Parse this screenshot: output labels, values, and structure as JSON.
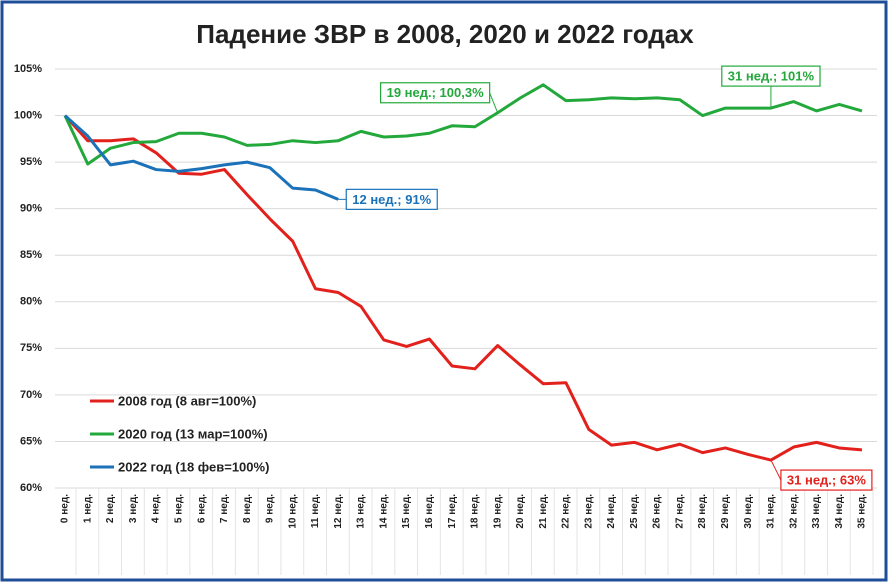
{
  "chart_data": {
    "type": "line",
    "title": "Падение ЗВР в 2008, 2020 и 2022 годах",
    "categories": [
      "0 нед.",
      "1 нед.",
      "2 нед.",
      "3 нед.",
      "4 нед.",
      "5 нед.",
      "6 нед.",
      "7 нед.",
      "8 нед.",
      "9 нед.",
      "10 нед.",
      "11 нед.",
      "12 нед.",
      "13 нед.",
      "14 нед.",
      "15 нед.",
      "16 нед.",
      "17 нед.",
      "18 нед.",
      "19 нед.",
      "20 нед.",
      "21 нед.",
      "22 нед.",
      "23 нед.",
      "24 нед.",
      "25 нед.",
      "26 нед.",
      "27 нед.",
      "28 нед.",
      "29 нед.",
      "30 нед.",
      "31 нед.",
      "32 нед.",
      "33 нед.",
      "34 нед.",
      "35 нед."
    ],
    "series": [
      {
        "name": "2008 год (8 авг=100%)",
        "color": "#e3211c",
        "values": [
          100,
          97.3,
          97.3,
          97.5,
          96,
          93.8,
          93.7,
          94.2,
          91.5,
          88.9,
          86.5,
          81.4,
          81,
          79.5,
          75.9,
          75.2,
          76,
          73.1,
          72.8,
          75.3,
          73.2,
          71.2,
          71.3,
          66.3,
          64.6,
          64.9,
          64.1,
          64.7,
          63.8,
          64.3,
          63.6,
          63,
          64.4,
          64.9,
          64.3,
          64.1
        ],
        "value_labels": [
          null,
          null,
          null,
          null,
          null,
          null,
          null,
          null,
          null,
          null,
          null,
          null,
          null,
          null,
          null,
          null,
          null,
          null,
          null,
          null,
          null,
          null,
          null,
          null,
          null,
          null,
          null,
          null,
          null,
          null,
          null,
          "31 нед.; 63%",
          null,
          null,
          null,
          null
        ]
      },
      {
        "name": "2020 год (13 мар=100%)",
        "color": "#23a83b",
        "values": [
          100,
          94.8,
          96.5,
          97.1,
          97.2,
          98.1,
          98.1,
          97.7,
          96.8,
          96.9,
          97.3,
          97.1,
          97.3,
          98.3,
          97.7,
          97.8,
          98.1,
          98.9,
          98.8,
          100.3,
          101.9,
          103.3,
          101.6,
          101.7,
          101.9,
          101.8,
          101.9,
          101.7,
          100,
          100.8,
          100.8,
          100.8,
          101.5,
          100.5,
          101.2,
          100.5
        ],
        "value_labels": [
          null,
          null,
          null,
          null,
          null,
          null,
          null,
          null,
          null,
          null,
          null,
          null,
          null,
          null,
          null,
          null,
          null,
          null,
          null,
          "19 нед.; 100,3%",
          null,
          null,
          null,
          null,
          null,
          null,
          null,
          null,
          null,
          null,
          null,
          "31 нед.; 101%",
          null,
          null,
          null,
          null
        ]
      },
      {
        "name": "2022 год (18 фев=100%)",
        "color": "#1b72b8",
        "values": [
          100,
          97.8,
          94.7,
          95.1,
          94.2,
          94,
          94.3,
          94.7,
          95,
          94.4,
          92.2,
          92,
          91,
          null,
          null,
          null,
          null,
          null,
          null,
          null,
          null,
          null,
          null,
          null,
          null,
          null,
          null,
          null,
          null,
          null,
          null,
          null,
          null,
          null,
          null,
          null
        ],
        "value_labels": [
          null,
          null,
          null,
          null,
          null,
          null,
          null,
          null,
          null,
          null,
          null,
          null,
          "12 нед.; 91%",
          null,
          null,
          null,
          null,
          null,
          null,
          null,
          null,
          null,
          null,
          null,
          null,
          null,
          null,
          null,
          null,
          null,
          null,
          null,
          null,
          null,
          null,
          null
        ]
      }
    ],
    "ylim": [
      60,
      105
    ],
    "yticks": [
      {
        "value": 60,
        "label": "60%"
      },
      {
        "value": 65,
        "label": "65%"
      },
      {
        "value": 70,
        "label": "70%"
      },
      {
        "value": 75,
        "label": "75%"
      },
      {
        "value": 80,
        "label": "80%"
      },
      {
        "value": 85,
        "label": "85%"
      },
      {
        "value": 90,
        "label": "90%"
      },
      {
        "value": 95,
        "label": "95%"
      },
      {
        "value": 100,
        "label": "100%"
      },
      {
        "value": 105,
        "label": "105%"
      }
    ],
    "grid": true,
    "legend": "lower-left"
  }
}
